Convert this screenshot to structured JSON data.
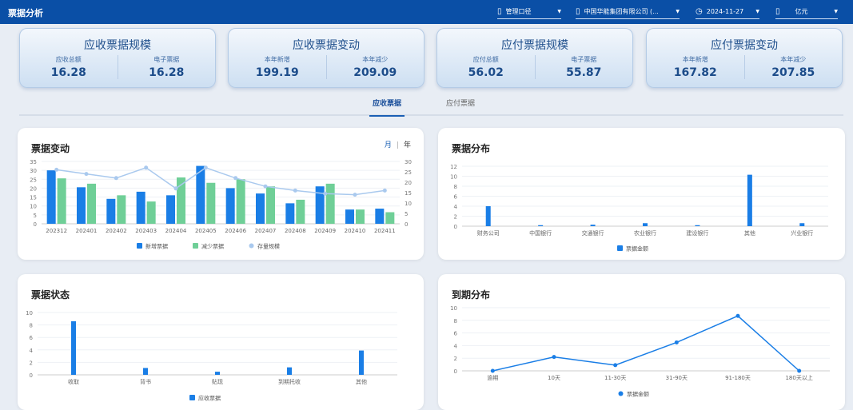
{
  "header": {
    "title": "票据分析",
    "filters": [
      {
        "icon": "building-icon",
        "label": "管理口径"
      },
      {
        "icon": "building-icon",
        "label": "中国华能集团有限公司 (..."
      },
      {
        "icon": "clock-icon",
        "label": "2024-11-27"
      },
      {
        "icon": "building-icon",
        "label": "亿元"
      }
    ]
  },
  "cards": [
    {
      "title": "应收票据规模",
      "items": [
        {
          "label": "应收总额",
          "value": "16.28"
        },
        {
          "label": "电子票据",
          "value": "16.28"
        }
      ]
    },
    {
      "title": "应收票据变动",
      "items": [
        {
          "label": "本年新增",
          "value": "199.19"
        },
        {
          "label": "本年减少",
          "value": "209.09"
        }
      ]
    },
    {
      "title": "应付票据规模",
      "items": [
        {
          "label": "应付总额",
          "value": "56.02"
        },
        {
          "label": "电子票据",
          "value": "55.87"
        }
      ]
    },
    {
      "title": "应付票据变动",
      "items": [
        {
          "label": "本年新增",
          "value": "167.82"
        },
        {
          "label": "本年减少",
          "value": "207.85"
        }
      ]
    }
  ],
  "tabs": [
    {
      "label": "应收票据",
      "active": true
    },
    {
      "label": "应付票据",
      "active": false
    }
  ],
  "period_toggle": {
    "month": "月",
    "separator": "|",
    "year": "年"
  },
  "colors": {
    "blue": "#1a7ee6",
    "green": "#6fcf97",
    "line": "#a9c9ee",
    "header": "#0a4fa6"
  },
  "chart_data": [
    {
      "title": "票据变动",
      "type": "bar",
      "categories": [
        "202312",
        "202401",
        "202402",
        "202403",
        "202404",
        "202405",
        "202406",
        "202407",
        "202408",
        "202409",
        "202410",
        "202411"
      ],
      "ylim": [
        0,
        35
      ],
      "yticks": [
        0,
        5,
        10,
        15,
        20,
        25,
        30,
        35
      ],
      "y2lim": [
        0,
        30
      ],
      "y2ticks": [
        0,
        5,
        10,
        15,
        20,
        25,
        30
      ],
      "series": [
        {
          "name": "新增票据",
          "type": "bar",
          "axis": "left",
          "values": [
            30,
            20.5,
            14,
            18,
            16,
            32.5,
            20,
            17,
            11.5,
            21,
            8,
            8.5
          ]
        },
        {
          "name": "减少票据",
          "type": "bar",
          "axis": "left",
          "values": [
            25.5,
            22.5,
            16,
            12.5,
            26,
            23,
            25,
            21,
            13.5,
            22.5,
            8,
            6.5
          ]
        },
        {
          "name": "存量规模",
          "type": "line",
          "axis": "right",
          "values": [
            26,
            24,
            22,
            27,
            17,
            27,
            22,
            18,
            16,
            14.5,
            14,
            16
          ]
        }
      ],
      "legend": "bottom"
    },
    {
      "title": "票据分布",
      "type": "bar",
      "categories": [
        "财务公司",
        "中国银行",
        "交通银行",
        "农业银行",
        "建设银行",
        "其他",
        "兴业银行"
      ],
      "ylim": [
        0,
        12
      ],
      "yticks": [
        0,
        2,
        4,
        6,
        8,
        10,
        12
      ],
      "series": [
        {
          "name": "票据金额",
          "type": "bar",
          "values": [
            4,
            0.2,
            0.3,
            0.6,
            0.2,
            10.3,
            0.6
          ]
        }
      ],
      "legend": "bottom"
    },
    {
      "title": "票据状态",
      "type": "bar",
      "categories": [
        "收取",
        "背书",
        "贴现",
        "到期托收",
        "其他"
      ],
      "ylim": [
        0,
        10
      ],
      "yticks": [
        0,
        2,
        4,
        6,
        8,
        10
      ],
      "series": [
        {
          "name": "应收票据",
          "type": "bar",
          "values": [
            8.6,
            1.1,
            0.5,
            1.2,
            3.9
          ]
        }
      ],
      "legend": "bottom"
    },
    {
      "title": "到期分布",
      "type": "line",
      "categories": [
        "逾期",
        "10天",
        "11-30天",
        "31-90天",
        "91-180天",
        "180天以上"
      ],
      "ylim": [
        0,
        10
      ],
      "yticks": [
        0,
        2,
        4,
        6,
        8,
        10
      ],
      "series": [
        {
          "name": "票据金额",
          "type": "line",
          "values": [
            0,
            2.2,
            0.9,
            4.5,
            8.7,
            0
          ]
        }
      ],
      "legend": "bottom"
    }
  ]
}
